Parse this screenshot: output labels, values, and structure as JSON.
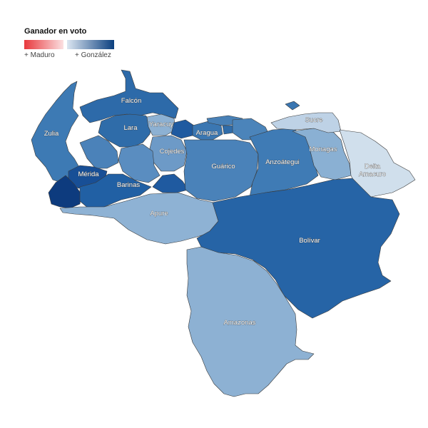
{
  "legend": {
    "title": "Ganador en voto",
    "left_label": "+ Maduro",
    "right_label": "+ González",
    "colors": {
      "maduro_strong": "#e8383d",
      "maduro_light": "#fbe0e1",
      "gonzalez_light": "#dce6f1",
      "gonzalez_strong": "#0b3f7f"
    }
  },
  "states": [
    {
      "id": "zulia",
      "label": "Zulia",
      "color": "#3d7ab4"
    },
    {
      "id": "falcon",
      "label": "Falcón",
      "color": "#2d6aa9"
    },
    {
      "id": "lara",
      "label": "Lara",
      "color": "#2f6ca9"
    },
    {
      "id": "yaracuy",
      "label": "Yaracuy",
      "color": "#8db1d3"
    },
    {
      "id": "carabobo",
      "label": "",
      "color": "#1f5aa0"
    },
    {
      "id": "aragua",
      "label": "Aragua",
      "color": "#3b77b2"
    },
    {
      "id": "miranda",
      "label": "",
      "color": "#4b84ba"
    },
    {
      "id": "caracas",
      "label": "",
      "color": "#2f6ca9"
    },
    {
      "id": "vargas",
      "label": "",
      "color": "#4880b6"
    },
    {
      "id": "cojedes",
      "label": "Cojedes",
      "color": "#6d9ac7"
    },
    {
      "id": "portuguesa",
      "label": "",
      "color": "#5a8dc0"
    },
    {
      "id": "trujillo",
      "label": "",
      "color": "#4b82b9"
    },
    {
      "id": "merida",
      "label": "Mérida",
      "color": "#184f96"
    },
    {
      "id": "tachira",
      "label": "",
      "color": "#0d3b7e"
    },
    {
      "id": "barinas",
      "label": "Barinas",
      "color": "#2160a4"
    },
    {
      "id": "guarico",
      "label": "Guárico",
      "color": "#4a82b9"
    },
    {
      "id": "anzoategui",
      "label": "Anzoátegui",
      "color": "#3f7bb5"
    },
    {
      "id": "monagas",
      "label": "Monagas",
      "color": "#8ab0d3"
    },
    {
      "id": "sucre",
      "label": "Sucre",
      "color": "#bed2e6"
    },
    {
      "id": "nueva_esparta",
      "label": "",
      "color": "#3a76b1"
    },
    {
      "id": "delta_amacuro",
      "label": "Delta Amacuro",
      "color": "#d0dfec"
    },
    {
      "id": "apure",
      "label": "Apure",
      "color": "#8eb2d4"
    },
    {
      "id": "bolivar",
      "label": "Bolívar",
      "color": "#2664a6"
    },
    {
      "id": "amazonas",
      "label": "Amazonas",
      "color": "#8db1d3"
    },
    {
      "id": "cojedes_south",
      "label": "",
      "color": "#1f5aa0"
    }
  ]
}
